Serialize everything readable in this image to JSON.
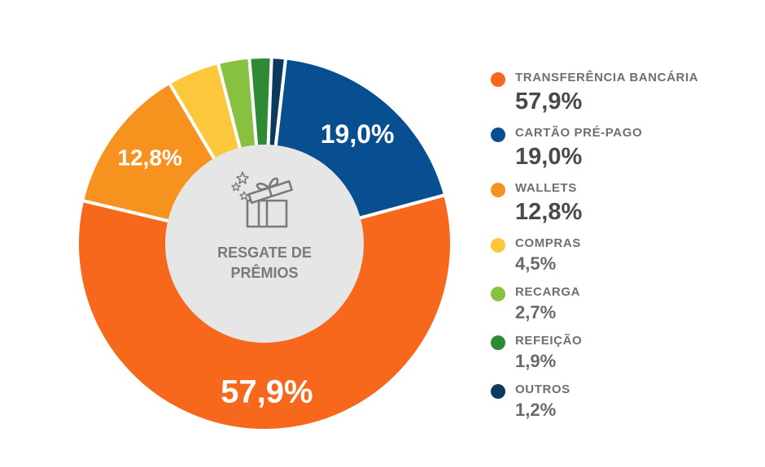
{
  "chart_data": {
    "type": "pie",
    "title": "",
    "center_label": [
      "RESGATE DE",
      "PRÊMIOS"
    ],
    "slices": [
      {
        "name": "TRANSFERÊNCIA BANCÁRIA",
        "value": 57.9,
        "display": "57,9%",
        "color": "#f7671c"
      },
      {
        "name": "CARTÃO PRÉ-PAGO",
        "value": 19.0,
        "display": "19,0%",
        "color": "#074f91"
      },
      {
        "name": "WALLETS",
        "value": 12.8,
        "display": "12,8%",
        "color": "#f7921e"
      },
      {
        "name": "COMPRAS",
        "value": 4.5,
        "display": "4,5%",
        "color": "#fcc73a"
      },
      {
        "name": "RECARGA",
        "value": 2.7,
        "display": "2,7%",
        "color": "#88c13f"
      },
      {
        "name": "REFEIÇÃO",
        "value": 1.9,
        "display": "1,9%",
        "color": "#2f8a36"
      },
      {
        "name": "OUTROS",
        "value": 1.2,
        "display": "1,2%",
        "color": "#0b3a5e"
      }
    ],
    "slice_labels_shown": [
      "TRANSFERÊNCIA BANCÁRIA",
      "CARTÃO PRÉ-PAGO",
      "WALLETS"
    ],
    "legend_position": "right"
  },
  "center_icon": "gift-box-icon"
}
